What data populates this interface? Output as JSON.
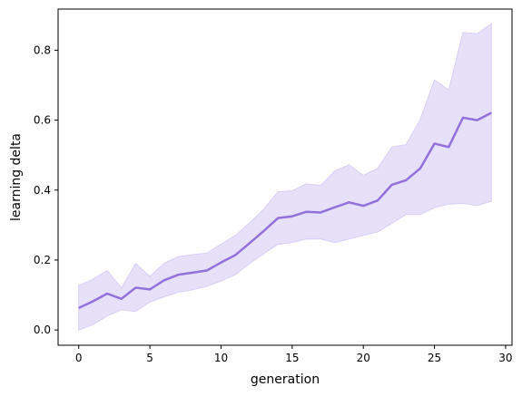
{
  "chart_data": {
    "type": "line",
    "title": "",
    "xlabel": "generation",
    "ylabel": "learning delta",
    "xlim": [
      -1.45,
      30.45
    ],
    "ylim": [
      -0.0437,
      0.9177
    ],
    "xticks": [
      0,
      5,
      10,
      15,
      20,
      25,
      30
    ],
    "yticks": [
      0.0,
      0.2,
      0.4,
      0.6,
      0.8
    ],
    "xtick_labels": [
      "0",
      "5",
      "10",
      "15",
      "20",
      "25",
      "30"
    ],
    "ytick_labels": [
      "0.0",
      "0.2",
      "0.4",
      "0.6",
      "0.8"
    ],
    "grid": false,
    "legend": null,
    "colors": {
      "line": "#9370db",
      "band": "#e6e0f9",
      "axis": "#000000"
    },
    "series": [
      {
        "x": [
          0,
          1,
          2,
          3,
          4,
          5,
          6,
          7,
          8,
          9,
          10,
          11,
          12,
          13,
          14,
          15,
          16,
          17,
          18,
          19,
          20,
          21,
          22,
          23,
          24,
          25,
          26,
          27,
          28,
          29
        ],
        "values": [
          0.063,
          0.082,
          0.104,
          0.089,
          0.121,
          0.116,
          0.142,
          0.158,
          0.164,
          0.17,
          0.193,
          0.214,
          0.248,
          0.283,
          0.32,
          0.325,
          0.338,
          0.336,
          0.351,
          0.365,
          0.355,
          0.37,
          0.415,
          0.428,
          0.462,
          0.533,
          0.523,
          0.607,
          0.6,
          0.621
        ],
        "lower": [
          0.0,
          0.015,
          0.04,
          0.058,
          0.053,
          0.08,
          0.095,
          0.108,
          0.115,
          0.125,
          0.14,
          0.158,
          0.19,
          0.218,
          0.245,
          0.25,
          0.26,
          0.26,
          0.25,
          0.26,
          0.27,
          0.28,
          0.305,
          0.33,
          0.33,
          0.35,
          0.36,
          0.362,
          0.356,
          0.368
        ],
        "upper": [
          0.127,
          0.145,
          0.17,
          0.12,
          0.19,
          0.153,
          0.191,
          0.21,
          0.215,
          0.22,
          0.245,
          0.27,
          0.306,
          0.345,
          0.395,
          0.398,
          0.418,
          0.413,
          0.455,
          0.472,
          0.442,
          0.462,
          0.523,
          0.53,
          0.602,
          0.715,
          0.686,
          0.851,
          0.847,
          0.876
        ]
      }
    ]
  }
}
